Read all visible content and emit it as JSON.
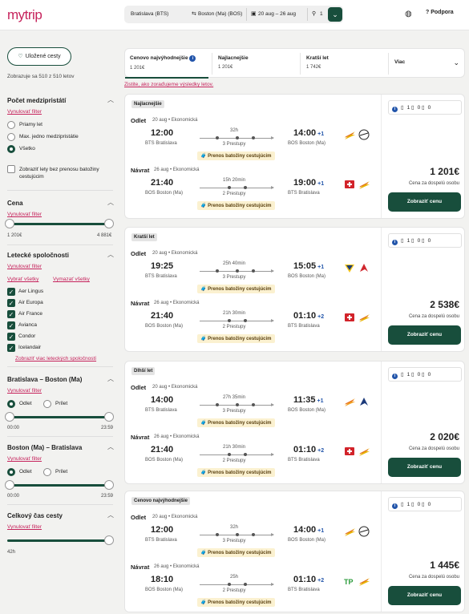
{
  "header": {
    "logo": "mytrip",
    "origin": "Bratislava (BTS)",
    "destination": "Boston (Ma) (BOS)",
    "dates": "20 aug – 26 aug",
    "passengers": "1",
    "support": "Podpora"
  },
  "sidebar": {
    "saved_label": "Uložené cesty",
    "count_text": "Zobrazuje sa 510 z 510 letov",
    "stops": {
      "title": "Počet medzipristátí",
      "reset": "Vynulovať filter",
      "options": [
        "Priamy let",
        "Max. jedno medzipristátie",
        "Všetko"
      ],
      "selected": 2,
      "no_transfer_label": "Zobraziť lety bez prenosu batožiny cestujúcim"
    },
    "price": {
      "title": "Cena",
      "reset": "Vynulovať filter",
      "min": "1 201€",
      "max": "4 881€"
    },
    "airlines": {
      "title": "Letecké spoločnosti",
      "reset": "Vynulovať filter",
      "select_all": "Vybrať všetky",
      "clear_all": "Vymazať všetky",
      "items": [
        "Aer Lingus",
        "Air Europa",
        "Air France",
        "Avianca",
        "Condor",
        "Icelandair"
      ],
      "more": "Zobraziť viac leteckých spoločností"
    },
    "outbound_times": {
      "title": "Bratislava – Boston (Ma)",
      "reset": "Vynulovať filter",
      "depart": "Odlet",
      "arrive": "Prílet",
      "min": "00:00",
      "max": "23:59"
    },
    "return_times": {
      "title": "Boston (Ma) – Bratislava",
      "reset": "Vynulovať filter",
      "depart": "Odlet",
      "arrive": "Prílet",
      "min": "00:00",
      "max": "23:59"
    },
    "duration": {
      "title": "Celkový čas cesty",
      "reset": "Vynulovať filter",
      "value": "42h"
    }
  },
  "sort": {
    "tabs": [
      {
        "label": "Cenovo najvýhodnejšie",
        "price": "1 201€"
      },
      {
        "label": "Najlacnejšie",
        "price": "1 201€"
      },
      {
        "label": "Kratší let",
        "price": "1 742€"
      }
    ],
    "more": "Viac",
    "link": "Zistite, ako zoraďujeme výsledky letov."
  },
  "common": {
    "depart_label": "Odlet",
    "return_label": "Návrat",
    "cabin": "Ekonomická",
    "bag_notice": "Prenos batožiny cestujúcim",
    "per_adult": "Cena za dospelú osobu",
    "show_price": "Zobraziť cenu",
    "bag_counts": "1 0 0"
  },
  "results": [
    {
      "tag": "Najlacnejšie",
      "price": "1 201€",
      "out": {
        "date": "20 aug",
        "dep": "12:00",
        "dep_code": "BTS Bratislava",
        "dur": "32h",
        "stops": "3 Prestupy",
        "arr": "14:00",
        "plus": "+1",
        "arr_code": "BOS Boston (Ma)"
      },
      "ret": {
        "date": "26 aug",
        "dep": "21:40",
        "dep_code": "BOS Boston (Ma)",
        "dur": "15h 20min",
        "stops": "2 Prestupy",
        "arr": "19:00",
        "plus": "+1",
        "arr_code": "BTS Bratislava"
      }
    },
    {
      "tag": "Kratší let",
      "price": "2 538€",
      "out": {
        "date": "20 aug",
        "dep": "19:25",
        "dep_code": "BTS Bratislava",
        "dur": "25h 40min",
        "stops": "3 Prestupy",
        "arr": "15:05",
        "plus": "+1",
        "arr_code": "BOS Boston (Ma)"
      },
      "ret": {
        "date": "26 aug",
        "dep": "21:40",
        "dep_code": "BOS Boston (Ma)",
        "dur": "21h 30min",
        "stops": "2 Prestupy",
        "arr": "01:10",
        "plus": "+2",
        "arr_code": "BTS Bratislava"
      }
    },
    {
      "tag": "Dlhší let",
      "price": "2 020€",
      "out": {
        "date": "20 aug",
        "dep": "14:00",
        "dep_code": "BTS Bratislava",
        "dur": "27h 35min",
        "stops": "3 Prestupy",
        "arr": "11:35",
        "plus": "+1",
        "arr_code": "BOS Boston (Ma)"
      },
      "ret": {
        "date": "26 aug",
        "dep": "21:40",
        "dep_code": "BOS Boston (Ma)",
        "dur": "21h 30min",
        "stops": "2 Prestupy",
        "arr": "01:10",
        "plus": "+2",
        "arr_code": "BTS Bratislava"
      }
    },
    {
      "tag": "Cenovo najvýhodnejšie",
      "price": "1 445€",
      "out": {
        "date": "20 aug",
        "dep": "12:00",
        "dep_code": "BTS Bratislava",
        "dur": "32h",
        "stops": "3 Prestupy",
        "arr": "14:00",
        "plus": "+1",
        "arr_code": "BOS Boston (Ma)"
      },
      "ret": {
        "date": "26 aug",
        "dep": "18:10",
        "dep_code": "BOS Boston (Ma)",
        "dur": "25h",
        "stops": "2 Prestupy",
        "arr": "01:10",
        "plus": "+2",
        "arr_code": "BTS Bratislava"
      }
    }
  ],
  "colors": {
    "brand": "#c6235c",
    "primary": "#184e3c",
    "bag_bg": "#fbf1d0",
    "info": "#2255aa"
  }
}
